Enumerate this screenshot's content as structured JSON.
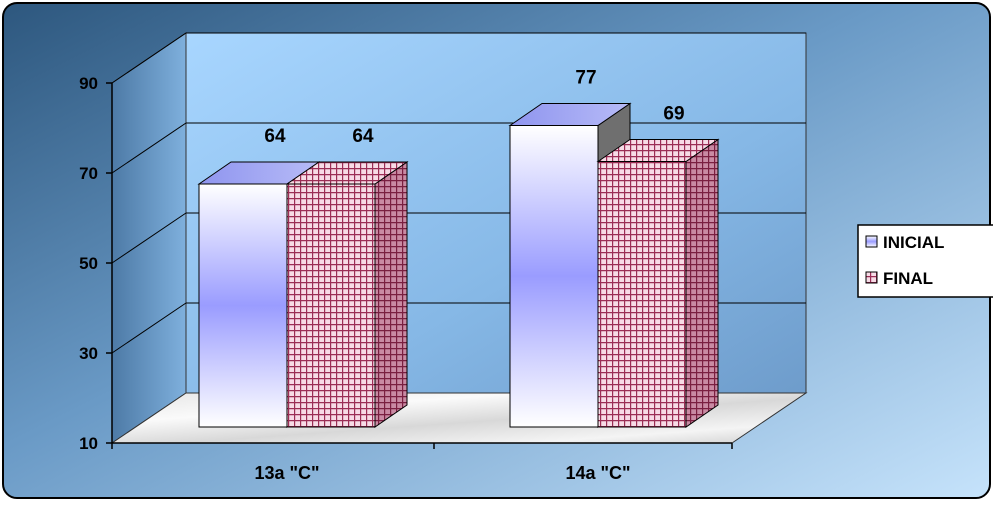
{
  "chart_data": {
    "type": "bar",
    "style": "3d-clustered-column",
    "categories": [
      "13a \"C\"",
      "14a \"C\""
    ],
    "series": [
      {
        "name": "INICIAL",
        "values": [
          64,
          77
        ],
        "fill": "gradient-white-periwinkle",
        "color": "#9999ff"
      },
      {
        "name": "FINAL",
        "values": [
          64,
          69
        ],
        "fill": "grid-pattern",
        "color": "#a0305a"
      }
    ],
    "y_ticks": [
      "10",
      "30",
      "50",
      "70",
      "90"
    ],
    "ylim": [
      10,
      90
    ],
    "grid": true,
    "legend_position": "right",
    "data_labels": true,
    "title": "",
    "xlabel": "",
    "ylabel": ""
  },
  "colors": {
    "frame_background_dark": "#3f6b93",
    "frame_background_light": "#a9cff0",
    "back_wall": "#8fc2f0",
    "gridline": "#000000",
    "final_bar_base": "#f3d6e0",
    "final_bar_grid": "#9b2d55",
    "inicial_bar_top": "#8f95ef"
  }
}
